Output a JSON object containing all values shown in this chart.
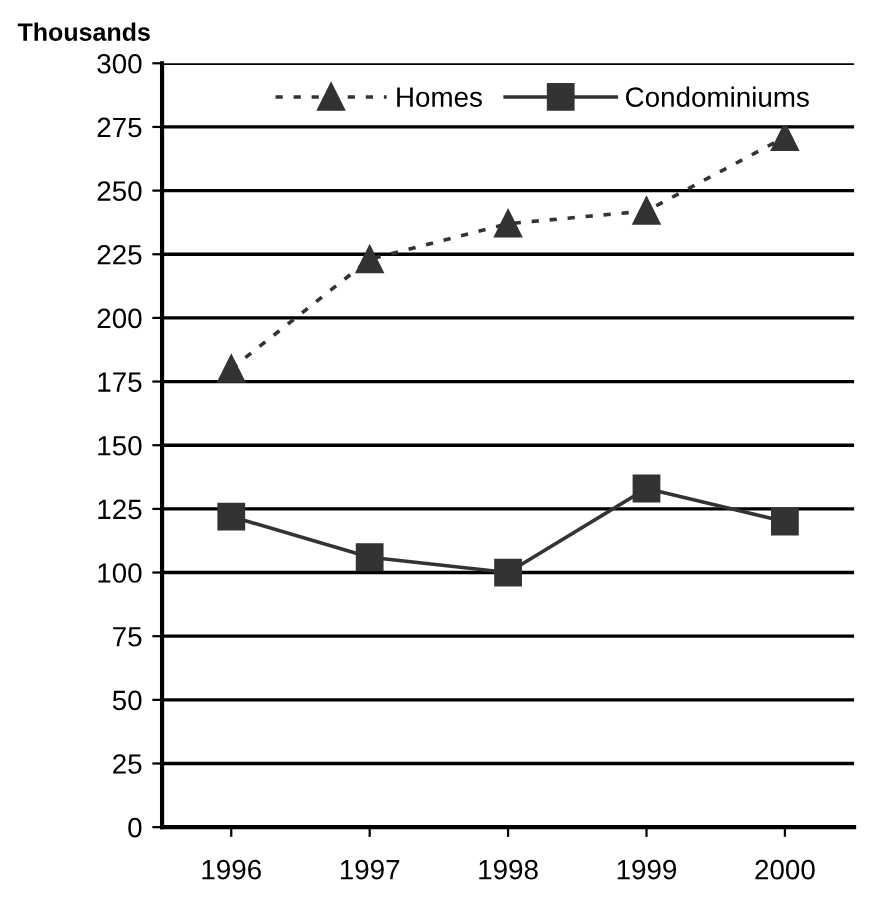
{
  "chart_data": {
    "type": "line",
    "ylabel": "Thousands",
    "categories": [
      "1996",
      "1997",
      "1998",
      "1999",
      "2000"
    ],
    "series": [
      {
        "name": "Homes",
        "color": "#333333",
        "marker": "triangle",
        "line_style": "dotted",
        "values": [
          180,
          223,
          237,
          242,
          271
        ]
      },
      {
        "name": "Condominiums",
        "color": "#333333",
        "marker": "square",
        "line_style": "solid",
        "values": [
          122,
          106,
          100,
          133,
          120
        ]
      }
    ],
    "ylim": [
      0,
      300
    ],
    "yticks": [
      0,
      25,
      50,
      75,
      100,
      125,
      150,
      175,
      200,
      225,
      250,
      275,
      300
    ],
    "grid": "y",
    "legend": "top"
  }
}
